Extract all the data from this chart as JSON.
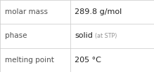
{
  "rows": [
    {
      "label": "molar mass",
      "value_main": "289.8 g/mol",
      "value_small": ""
    },
    {
      "label": "phase",
      "value_main": "solid",
      "value_small": "(at STP)"
    },
    {
      "label": "melting point",
      "value_main": "205 °C",
      "value_small": ""
    }
  ],
  "bg_color": "#ffffff",
  "border_color": "#c8c8c8",
  "label_color": "#505050",
  "value_color": "#202020",
  "small_color": "#909090",
  "label_fontsize": 7.5,
  "value_fontsize": 8.0,
  "small_fontsize": 5.8,
  "col_split": 0.455,
  "figwidth": 2.19,
  "figheight": 1.03,
  "dpi": 100
}
